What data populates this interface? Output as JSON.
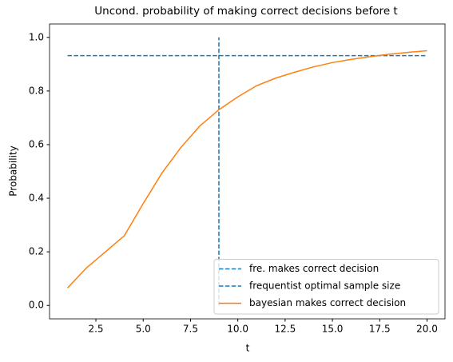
{
  "chart_data": {
    "type": "line",
    "title": "Uncond. probability of making correct decisions before t",
    "x_label": "t",
    "y_label": "Probability",
    "xlim": [
      0.05,
      20.95
    ],
    "ylim": [
      -0.05,
      1.05
    ],
    "xticks": [
      2.5,
      {
        "value": 5,
        "label": "5.0"
      },
      7.5,
      {
        "value": 10,
        "label": "10.0"
      },
      12.5,
      {
        "value": 15,
        "label": "15.0"
      },
      17.5,
      {
        "value": 20,
        "label": "20.0"
      }
    ],
    "yticks": [
      {
        "value": 0,
        "label": "0.0"
      },
      0.2,
      0.4,
      0.6,
      0.8,
      {
        "value": 1,
        "label": "1.0"
      }
    ],
    "grid": false,
    "legend": "lower right",
    "series": [
      {
        "name": "fre. makes correct decision",
        "color": "#1f77b4",
        "dashed": true,
        "x": [
          1,
          20
        ],
        "values": [
          0.932,
          0.932
        ]
      },
      {
        "name": "frequentist optimal sample size",
        "color": "#1f77b4",
        "dashed": true,
        "x": [
          9,
          9
        ],
        "values": [
          0,
          1
        ]
      },
      {
        "name": "bayesian makes correct decision",
        "color": "#ff7f0e",
        "dashed": false,
        "x": [
          1,
          2,
          3,
          4,
          5,
          6,
          7,
          8,
          9,
          10,
          11,
          12,
          13,
          14,
          15,
          16,
          17,
          18,
          19,
          20
        ],
        "values": [
          0.065,
          0.14,
          0.2,
          0.26,
          0.38,
          0.495,
          0.59,
          0.67,
          0.73,
          0.778,
          0.82,
          0.848,
          0.87,
          0.89,
          0.906,
          0.918,
          0.928,
          0.937,
          0.944,
          0.95
        ]
      }
    ]
  }
}
